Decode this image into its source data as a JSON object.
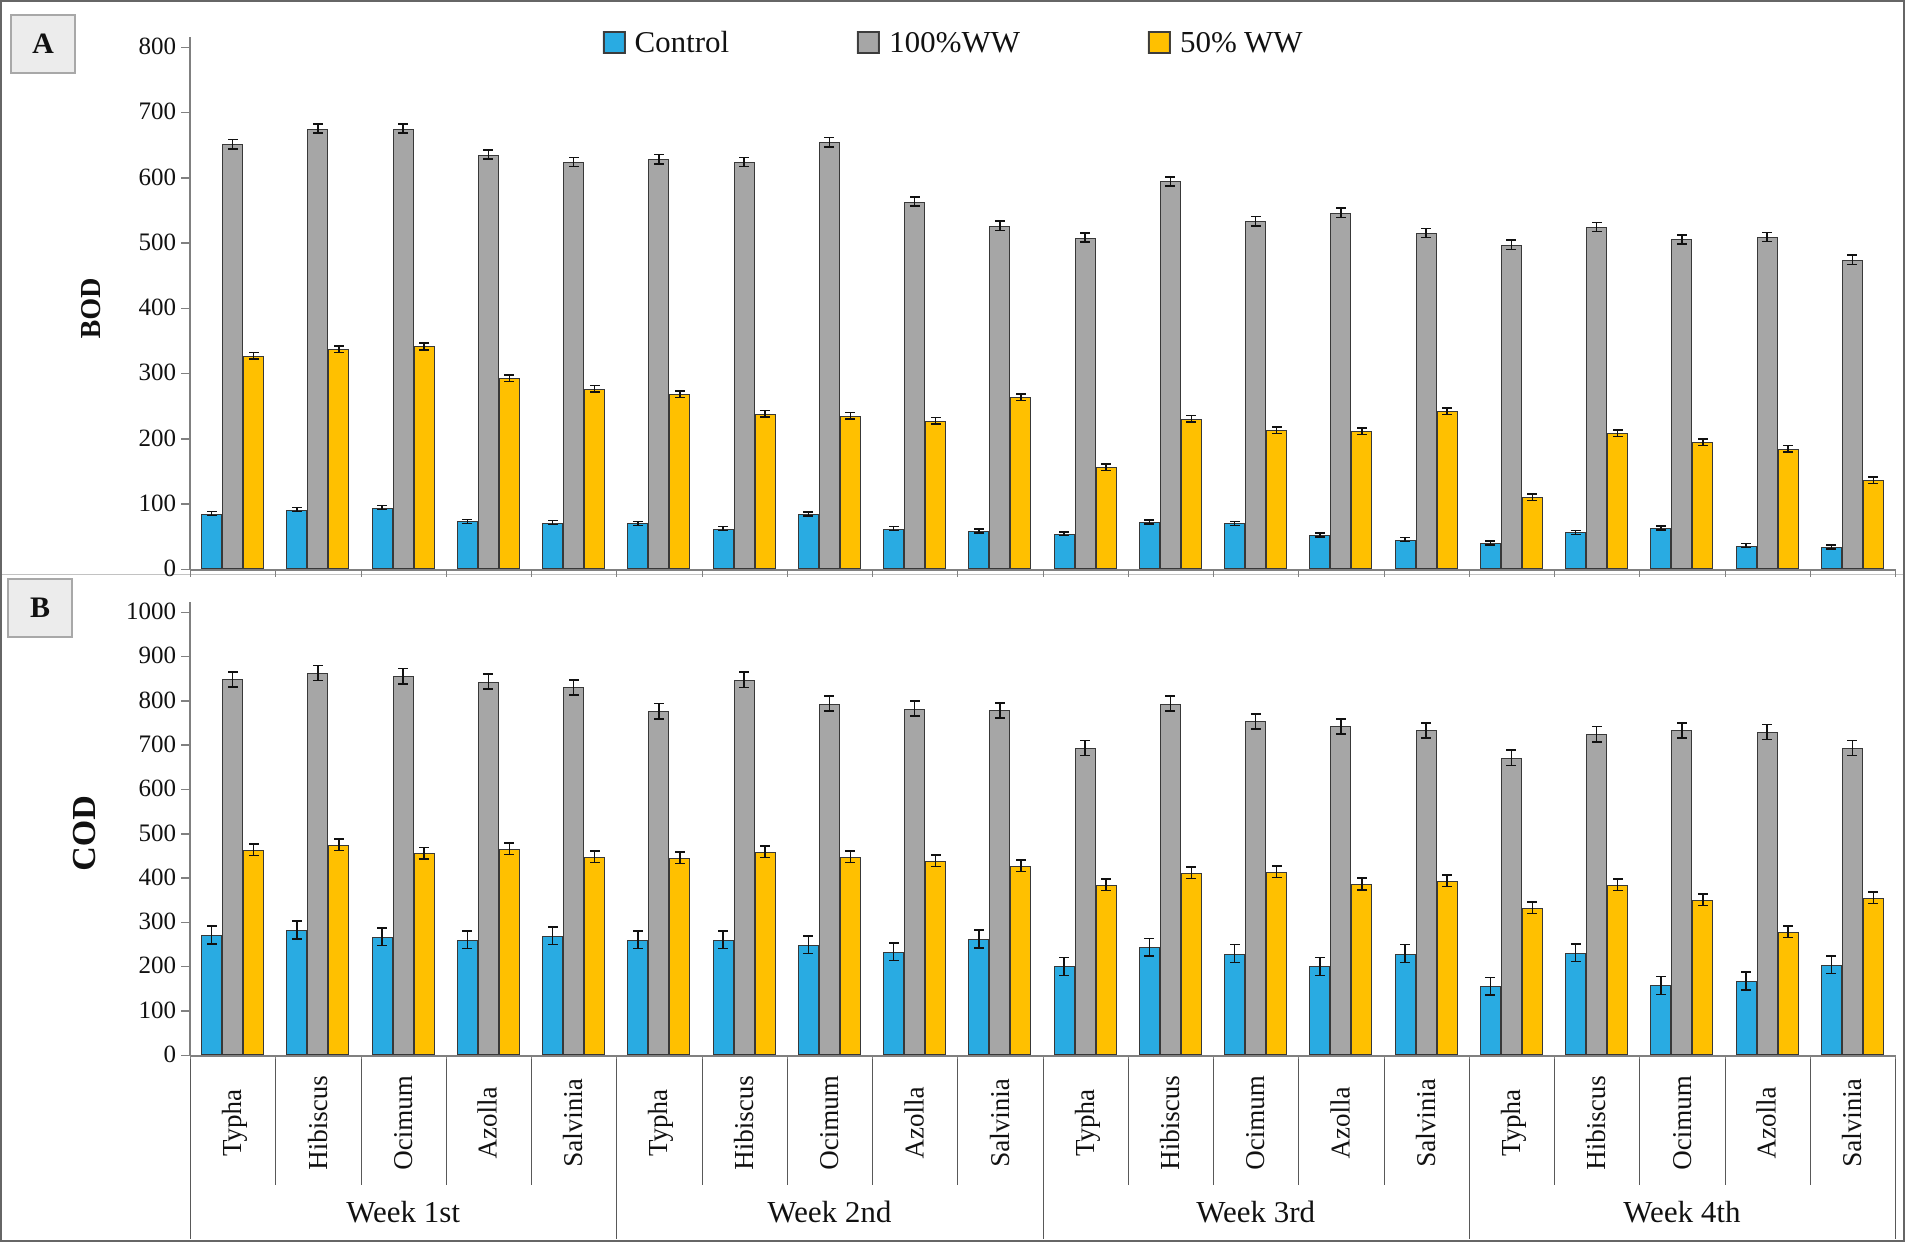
{
  "figure": {
    "panels": {
      "a": {
        "label": "A"
      },
      "b": {
        "label": "B"
      }
    },
    "legend": [
      {
        "label": "Control",
        "color": "#29ABE2"
      },
      {
        "label": "100%WW",
        "color": "#A6A6A6"
      },
      {
        "label": "50% WW",
        "color": "#FFC000"
      }
    ]
  },
  "chart_data": [
    {
      "type": "bar",
      "panel": "A",
      "title": "",
      "xlabel": "",
      "ylabel": "BOD",
      "ylim": [
        0,
        800
      ],
      "ytick_step": 100,
      "grid": false,
      "legend_position": "top",
      "weeks": [
        "Week 1st",
        "Week 2nd",
        "Week 3rd",
        "Week 4th"
      ],
      "plants": [
        "Typha",
        "Hibiscus",
        "Ocimum",
        "Azolla",
        "Salvinia"
      ],
      "series": [
        {
          "name": "Control",
          "color": "#29ABE2",
          "error": 3,
          "values": [
            85,
            91,
            94,
            73,
            71,
            70,
            62,
            84,
            62,
            58,
            54,
            72,
            70,
            52,
            45,
            40,
            56,
            63,
            36,
            34
          ]
        },
        {
          "name": "100%WW",
          "color": "#A6A6A6",
          "error": 7,
          "values": [
            651,
            675,
            675,
            635,
            624,
            628,
            624,
            654,
            563,
            526,
            508,
            594,
            533,
            546,
            515,
            497,
            524,
            505,
            509,
            474
          ]
        },
        {
          "name": "50% WW",
          "color": "#FFC000",
          "error": 5,
          "values": [
            327,
            337,
            341,
            292,
            276,
            268,
            238,
            235,
            227,
            263,
            156,
            230,
            213,
            211,
            242,
            110,
            208,
            194,
            184,
            136
          ]
        }
      ]
    },
    {
      "type": "bar",
      "panel": "B",
      "title": "",
      "xlabel": "",
      "ylabel": "COD",
      "ylim": [
        0,
        1000
      ],
      "ytick_step": 100,
      "grid": false,
      "legend_position": "none",
      "weeks": [
        "Week 1st",
        "Week 2nd",
        "Week 3rd",
        "Week 4th"
      ],
      "plants": [
        "Typha",
        "Hibiscus",
        "Ocimum",
        "Azolla",
        "Salvinia"
      ],
      "series": [
        {
          "name": "Control",
          "color": "#29ABE2",
          "error": 20,
          "values": [
            271,
            282,
            267,
            260,
            269,
            260,
            260,
            249,
            233,
            262,
            200,
            243,
            229,
            200,
            229,
            155,
            231,
            157,
            167,
            204
          ]
        },
        {
          "name": "100%WW",
          "color": "#A6A6A6",
          "error": 17,
          "values": [
            848,
            862,
            855,
            843,
            830,
            776,
            847,
            793,
            782,
            778,
            693,
            793,
            753,
            742,
            733,
            671,
            724,
            733,
            729,
            693
          ]
        },
        {
          "name": "50% WW",
          "color": "#FFC000",
          "error": 13,
          "values": [
            463,
            475,
            455,
            466,
            448,
            445,
            459,
            448,
            439,
            427,
            384,
            411,
            414,
            386,
            393,
            332,
            384,
            350,
            278,
            355
          ]
        }
      ]
    }
  ]
}
